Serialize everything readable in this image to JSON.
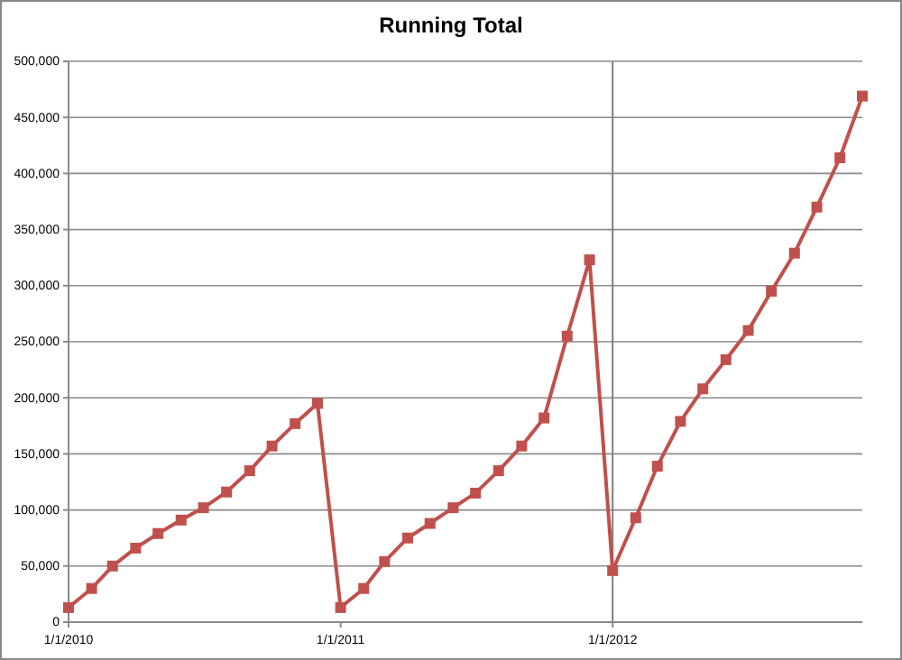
{
  "chart_data": {
    "type": "line",
    "title": "Running Total",
    "x": [
      "2010-01",
      "2010-02",
      "2010-03",
      "2010-04",
      "2010-05",
      "2010-06",
      "2010-07",
      "2010-08",
      "2010-09",
      "2010-10",
      "2010-11",
      "2010-12",
      "2011-01",
      "2011-02",
      "2011-03",
      "2011-04",
      "2011-05",
      "2011-06",
      "2011-07",
      "2011-08",
      "2011-09",
      "2011-10",
      "2011-11",
      "2011-12",
      "2012-01",
      "2012-02",
      "2012-03",
      "2012-04",
      "2012-05",
      "2012-06",
      "2012-07",
      "2012-08",
      "2012-09",
      "2012-10",
      "2012-11",
      "2012-12"
    ],
    "series": [
      {
        "color": "#c0504d",
        "values": [
          13000,
          30000,
          50000,
          66000,
          79000,
          91000,
          102000,
          116000,
          135000,
          157000,
          177000,
          195000,
          13000,
          30000,
          54000,
          75000,
          88000,
          102000,
          115000,
          135000,
          157000,
          182000,
          255000,
          323000,
          46000,
          93000,
          139000,
          179000,
          208000,
          234000,
          260000,
          295000,
          329000,
          370000,
          414000,
          469000
        ]
      }
    ],
    "xlim": [
      "2010-01-01",
      "2012-12-01"
    ],
    "xticks": [
      {
        "value": "2010-01-01",
        "label": "1/1/2010"
      },
      {
        "value": "2011-01-01",
        "label": "1/1/2011"
      },
      {
        "value": "2012-01-01",
        "label": "1/1/2012"
      }
    ],
    "ylim": [
      0,
      500000
    ],
    "yticks": [
      {
        "value": 0,
        "label": "0"
      },
      {
        "value": 50000,
        "label": "50,000"
      },
      {
        "value": 100000,
        "label": "100,000"
      },
      {
        "value": 150000,
        "label": "150,000"
      },
      {
        "value": 200000,
        "label": "200,000"
      },
      {
        "value": 250000,
        "label": "250,000"
      },
      {
        "value": 300000,
        "label": "300,000"
      },
      {
        "value": 350000,
        "label": "350,000"
      },
      {
        "value": 400000,
        "label": "400,000"
      },
      {
        "value": 450000,
        "label": "450,000"
      },
      {
        "value": 500000,
        "label": "500,000"
      }
    ],
    "ref_lines": [
      {
        "axis": "x",
        "value": "2012-01-01",
        "color": "#808080"
      }
    ],
    "grid": "y",
    "marker": "square",
    "line_style": "solid"
  }
}
